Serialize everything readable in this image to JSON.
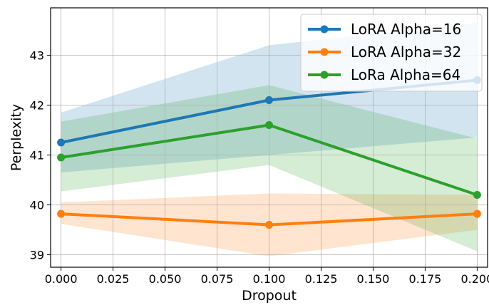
{
  "chart_data": {
    "type": "line",
    "title": "",
    "xlabel": "Dropout",
    "ylabel": "Perplexity",
    "x": [
      0.0,
      0.1,
      0.2
    ],
    "xlim": [
      -0.005,
      0.205
    ],
    "ylim": [
      38.75,
      43.95
    ],
    "xticks": [
      0.0,
      0.025,
      0.05,
      0.075,
      0.1,
      0.125,
      0.15,
      0.175,
      0.2
    ],
    "xtick_labels": [
      "0.000",
      "0.025",
      "0.050",
      "0.075",
      "0.100",
      "0.125",
      "0.150",
      "0.175",
      "0.200"
    ],
    "yticks": [
      39,
      40,
      41,
      42,
      43
    ],
    "ytick_labels": [
      "39",
      "40",
      "41",
      "42",
      "43"
    ],
    "grid": true,
    "legend_position": "top-right",
    "series": [
      {
        "name": "LoRA Alpha=16",
        "color": "#1f77b4",
        "values": [
          41.25,
          42.1,
          42.5
        ],
        "lower": [
          40.65,
          41.0,
          41.35
        ],
        "upper": [
          41.85,
          43.2,
          43.65
        ]
      },
      {
        "name": "LoRA Alpha=32",
        "color": "#ff7f0e",
        "values": [
          39.82,
          39.6,
          39.82
        ],
        "lower": [
          39.62,
          38.97,
          39.5
        ],
        "upper": [
          40.05,
          40.23,
          40.2
        ]
      },
      {
        "name": "LoRa Alpha=64",
        "color": "#2ca02c",
        "values": [
          40.95,
          41.6,
          40.2
        ],
        "lower": [
          40.27,
          40.8,
          39.07
        ],
        "upper": [
          41.67,
          42.4,
          41.33
        ]
      }
    ]
  }
}
